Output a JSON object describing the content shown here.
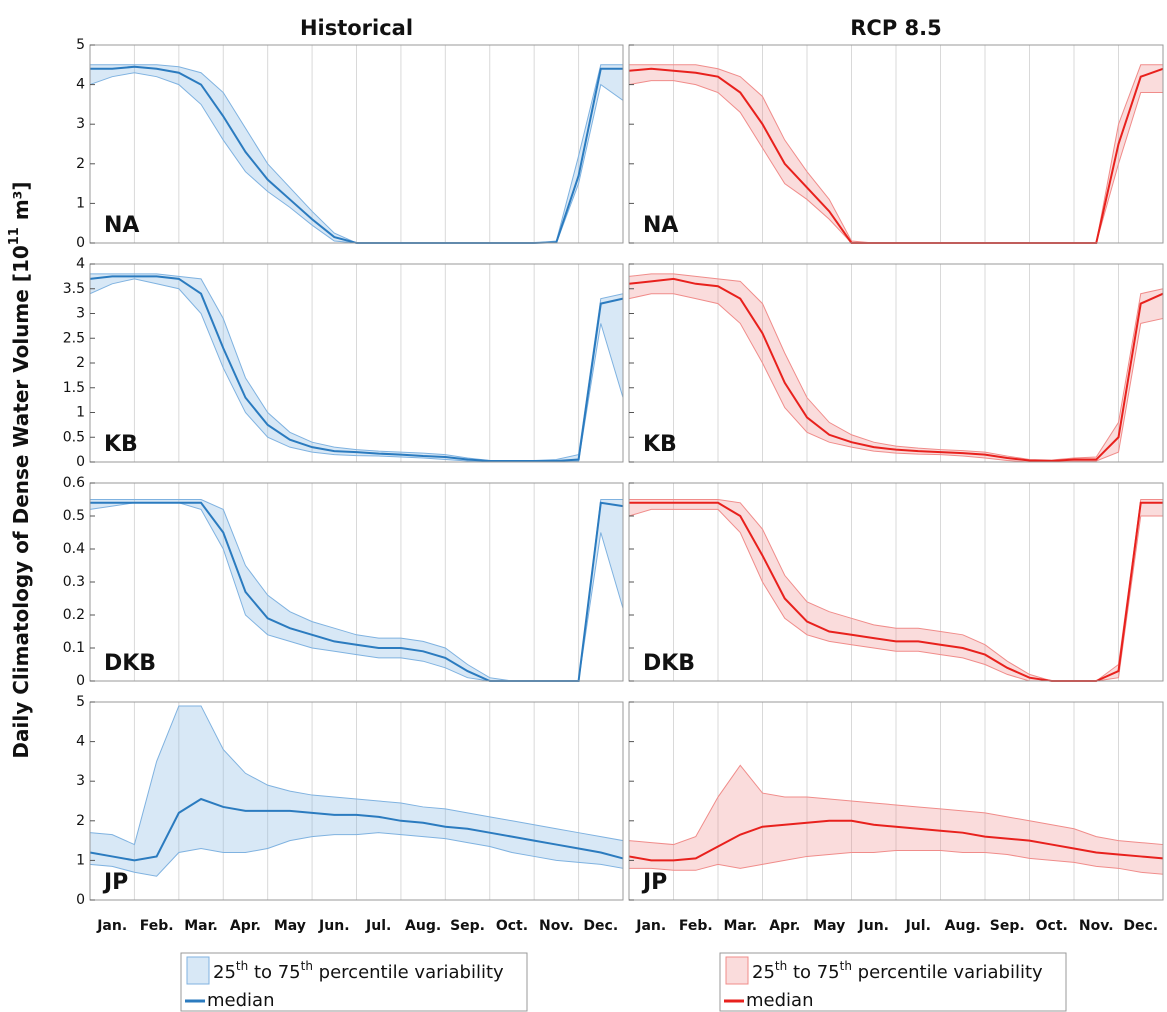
{
  "ylabel": "Daily Climatology of Dense Water Volume [10",
  "ylabel_sup": "11",
  "ylabel_end": " m³]",
  "chart_data": [
    {
      "type": "line",
      "title": "Historical",
      "annotation": "NA",
      "ylim": [
        0,
        5
      ],
      "yticks": [
        0,
        1,
        2,
        3,
        4,
        5
      ],
      "ytick_labels": true,
      "grid": "x",
      "series": [
        {
          "kind": "band",
          "color": "#7fb2e0",
          "low": [
            4.0,
            4.2,
            4.3,
            4.2,
            4.0,
            3.5,
            2.6,
            1.8,
            1.3,
            0.9,
            0.45,
            0.05,
            0,
            0,
            0,
            0,
            0,
            0,
            0,
            0,
            0,
            0,
            1.5,
            4.0,
            3.6
          ],
          "high": [
            4.5,
            4.5,
            4.5,
            4.5,
            4.45,
            4.3,
            3.8,
            2.9,
            2.0,
            1.4,
            0.8,
            0.25,
            0,
            0,
            0,
            0,
            0,
            0,
            0,
            0,
            0,
            0.05,
            2.2,
            4.5,
            4.5
          ]
        },
        {
          "kind": "line",
          "color": "#2b7bbf",
          "values": [
            4.4,
            4.4,
            4.45,
            4.4,
            4.3,
            4.0,
            3.2,
            2.3,
            1.6,
            1.1,
            0.6,
            0.15,
            0,
            0,
            0,
            0,
            0,
            0,
            0,
            0,
            0,
            0.02,
            1.7,
            4.4,
            4.4
          ]
        }
      ]
    },
    {
      "type": "line",
      "annotation": "KB",
      "ylim": [
        0,
        4
      ],
      "yticks": [
        0,
        0.5,
        1,
        1.5,
        2,
        2.5,
        3,
        3.5,
        4
      ],
      "ytick_labels": true,
      "grid": "x",
      "series": [
        {
          "kind": "band",
          "color": "#7fb2e0",
          "low": [
            3.4,
            3.6,
            3.7,
            3.6,
            3.5,
            3.0,
            1.9,
            1.0,
            0.5,
            0.3,
            0.2,
            0.15,
            0.13,
            0.12,
            0.1,
            0.08,
            0.05,
            0.02,
            0,
            0,
            0,
            0,
            0.02,
            2.8,
            1.3
          ],
          "high": [
            3.8,
            3.8,
            3.8,
            3.8,
            3.75,
            3.7,
            2.9,
            1.7,
            1.0,
            0.6,
            0.4,
            0.3,
            0.25,
            0.22,
            0.2,
            0.18,
            0.15,
            0.08,
            0.03,
            0.03,
            0.03,
            0.05,
            0.15,
            3.3,
            3.4
          ]
        },
        {
          "kind": "line",
          "color": "#2b7bbf",
          "values": [
            3.7,
            3.75,
            3.75,
            3.75,
            3.7,
            3.4,
            2.3,
            1.3,
            0.75,
            0.45,
            0.3,
            0.22,
            0.2,
            0.17,
            0.15,
            0.12,
            0.1,
            0.05,
            0.02,
            0.02,
            0.02,
            0.02,
            0.05,
            3.2,
            3.3
          ]
        }
      ]
    },
    {
      "type": "line",
      "annotation": "DKB",
      "ylim": [
        0,
        0.6
      ],
      "yticks": [
        0,
        0.1,
        0.2,
        0.3,
        0.4,
        0.5,
        0.6
      ],
      "ytick_labels": true,
      "grid": "x",
      "series": [
        {
          "kind": "band",
          "color": "#7fb2e0",
          "low": [
            0.52,
            0.53,
            0.54,
            0.54,
            0.54,
            0.52,
            0.4,
            0.2,
            0.14,
            0.12,
            0.1,
            0.09,
            0.08,
            0.07,
            0.07,
            0.06,
            0.04,
            0.01,
            0,
            0,
            0,
            0,
            0,
            0.45,
            0.22
          ],
          "high": [
            0.55,
            0.55,
            0.55,
            0.55,
            0.55,
            0.55,
            0.52,
            0.35,
            0.26,
            0.21,
            0.18,
            0.16,
            0.14,
            0.13,
            0.13,
            0.12,
            0.1,
            0.05,
            0.01,
            0,
            0,
            0,
            0,
            0.55,
            0.55
          ]
        },
        {
          "kind": "line",
          "color": "#2b7bbf",
          "values": [
            0.54,
            0.54,
            0.54,
            0.54,
            0.54,
            0.54,
            0.45,
            0.27,
            0.19,
            0.16,
            0.14,
            0.12,
            0.11,
            0.1,
            0.1,
            0.09,
            0.07,
            0.03,
            0,
            0,
            0,
            0,
            0,
            0.54,
            0.53
          ]
        }
      ]
    },
    {
      "type": "line",
      "annotation": "JP",
      "ylim": [
        0,
        5
      ],
      "yticks": [
        0,
        1,
        2,
        3,
        4,
        5
      ],
      "ytick_labels": true,
      "grid": "x",
      "legend": "below",
      "categories": [
        null,
        "Jan.",
        null,
        "Feb.",
        null,
        "Mar.",
        null,
        "Apr.",
        null,
        "May",
        null,
        "Jun.",
        null,
        "Jul.",
        null,
        "Aug.",
        null,
        "Sep.",
        null,
        "Oct.",
        null,
        "Nov.",
        null,
        "Dec.",
        null
      ],
      "series": [
        {
          "kind": "band",
          "name": "25th to 75th percentile variability",
          "color": "#7fb2e0",
          "low": [
            0.9,
            0.85,
            0.7,
            0.6,
            1.2,
            1.3,
            1.2,
            1.2,
            1.3,
            1.5,
            1.6,
            1.65,
            1.65,
            1.7,
            1.65,
            1.6,
            1.55,
            1.45,
            1.35,
            1.2,
            1.1,
            1.0,
            0.95,
            0.9,
            0.8
          ],
          "high": [
            1.7,
            1.65,
            1.4,
            3.5,
            4.9,
            4.9,
            3.8,
            3.2,
            2.9,
            2.75,
            2.65,
            2.6,
            2.55,
            2.5,
            2.45,
            2.35,
            2.3,
            2.2,
            2.1,
            2.0,
            1.9,
            1.8,
            1.7,
            1.6,
            1.5
          ]
        },
        {
          "kind": "line",
          "name": "median",
          "color": "#2b7bbf",
          "values": [
            1.2,
            1.1,
            1.0,
            1.1,
            2.2,
            2.55,
            2.35,
            2.25,
            2.25,
            2.25,
            2.2,
            2.15,
            2.15,
            2.1,
            2.0,
            1.95,
            1.85,
            1.8,
            1.7,
            1.6,
            1.5,
            1.4,
            1.3,
            1.2,
            1.05
          ]
        }
      ]
    },
    {
      "type": "line",
      "title": "RCP 8.5",
      "annotation": "NA",
      "ylim": [
        0,
        5
      ],
      "yticks": [
        0,
        1,
        2,
        3,
        4,
        5
      ],
      "ytick_labels": false,
      "grid": "x",
      "series": [
        {
          "kind": "band",
          "color": "#f08c8a",
          "low": [
            4.0,
            4.1,
            4.1,
            4.0,
            3.8,
            3.3,
            2.4,
            1.5,
            1.1,
            0.6,
            0,
            0,
            0,
            0,
            0,
            0,
            0,
            0,
            0,
            0,
            0,
            0,
            2.0,
            3.8,
            3.8
          ],
          "high": [
            4.5,
            4.5,
            4.5,
            4.5,
            4.4,
            4.2,
            3.7,
            2.6,
            1.8,
            1.1,
            0.05,
            0,
            0,
            0,
            0,
            0,
            0,
            0,
            0,
            0,
            0,
            0,
            3.0,
            4.5,
            4.5
          ]
        },
        {
          "kind": "line",
          "color": "#e8211d",
          "values": [
            4.35,
            4.4,
            4.35,
            4.3,
            4.2,
            3.8,
            3.0,
            2.0,
            1.4,
            0.8,
            0,
            0,
            0,
            0,
            0,
            0,
            0,
            0,
            0,
            0,
            0,
            0,
            2.5,
            4.2,
            4.4
          ]
        }
      ]
    },
    {
      "type": "line",
      "annotation": "KB",
      "ylim": [
        0,
        4
      ],
      "yticks": [
        0,
        0.5,
        1,
        1.5,
        2,
        2.5,
        3,
        3.5,
        4
      ],
      "ytick_labels": false,
      "grid": "x",
      "series": [
        {
          "kind": "band",
          "color": "#f08c8a",
          "low": [
            3.3,
            3.4,
            3.4,
            3.3,
            3.2,
            2.8,
            2.0,
            1.1,
            0.6,
            0.4,
            0.3,
            0.22,
            0.18,
            0.16,
            0.15,
            0.12,
            0.08,
            0.03,
            0,
            0,
            0.02,
            0.02,
            0.2,
            2.8,
            2.9
          ],
          "high": [
            3.75,
            3.8,
            3.8,
            3.75,
            3.7,
            3.65,
            3.2,
            2.2,
            1.3,
            0.8,
            0.55,
            0.4,
            0.32,
            0.28,
            0.25,
            0.23,
            0.2,
            0.12,
            0.05,
            0.04,
            0.08,
            0.1,
            0.8,
            3.4,
            3.5
          ]
        },
        {
          "kind": "line",
          "color": "#e8211d",
          "values": [
            3.6,
            3.65,
            3.7,
            3.6,
            3.55,
            3.3,
            2.6,
            1.6,
            0.9,
            0.55,
            0.4,
            0.3,
            0.25,
            0.22,
            0.2,
            0.18,
            0.15,
            0.08,
            0.03,
            0.02,
            0.05,
            0.05,
            0.5,
            3.2,
            3.4
          ]
        }
      ]
    },
    {
      "type": "line",
      "annotation": "DKB",
      "ylim": [
        0,
        0.6
      ],
      "yticks": [
        0,
        0.1,
        0.2,
        0.3,
        0.4,
        0.5,
        0.6
      ],
      "ytick_labels": false,
      "grid": "x",
      "series": [
        {
          "kind": "band",
          "color": "#f08c8a",
          "low": [
            0.5,
            0.52,
            0.52,
            0.52,
            0.52,
            0.45,
            0.3,
            0.19,
            0.14,
            0.12,
            0.11,
            0.1,
            0.09,
            0.09,
            0.08,
            0.07,
            0.05,
            0.02,
            0,
            0,
            0,
            0,
            0.01,
            0.5,
            0.5
          ],
          "high": [
            0.55,
            0.55,
            0.55,
            0.55,
            0.55,
            0.54,
            0.46,
            0.32,
            0.24,
            0.21,
            0.19,
            0.17,
            0.16,
            0.16,
            0.15,
            0.14,
            0.11,
            0.06,
            0.02,
            0,
            0,
            0,
            0.05,
            0.55,
            0.55
          ]
        },
        {
          "kind": "line",
          "color": "#e8211d",
          "values": [
            0.54,
            0.54,
            0.54,
            0.54,
            0.54,
            0.5,
            0.38,
            0.25,
            0.18,
            0.15,
            0.14,
            0.13,
            0.12,
            0.12,
            0.11,
            0.1,
            0.08,
            0.04,
            0.01,
            0,
            0,
            0,
            0.03,
            0.54,
            0.54
          ]
        }
      ]
    },
    {
      "type": "line",
      "annotation": "JP",
      "ylim": [
        0,
        5
      ],
      "yticks": [
        0,
        1,
        2,
        3,
        4,
        5
      ],
      "ytick_labels": false,
      "grid": "x",
      "legend": "below",
      "categories": [
        null,
        "Jan.",
        null,
        "Feb.",
        null,
        "Mar.",
        null,
        "Apr.",
        null,
        "May",
        null,
        "Jun.",
        null,
        "Jul.",
        null,
        "Aug.",
        null,
        "Sep.",
        null,
        "Oct.",
        null,
        "Nov.",
        null,
        "Dec.",
        null
      ],
      "series": [
        {
          "kind": "band",
          "name": "25th to 75th percentile variability",
          "color": "#f08c8a",
          "low": [
            0.8,
            0.8,
            0.75,
            0.75,
            0.9,
            0.8,
            0.9,
            1.0,
            1.1,
            1.15,
            1.2,
            1.2,
            1.25,
            1.25,
            1.25,
            1.2,
            1.2,
            1.15,
            1.05,
            1.0,
            0.95,
            0.85,
            0.8,
            0.7,
            0.65
          ],
          "high": [
            1.5,
            1.45,
            1.4,
            1.6,
            2.6,
            3.4,
            2.7,
            2.6,
            2.6,
            2.55,
            2.5,
            2.45,
            2.4,
            2.35,
            2.3,
            2.25,
            2.2,
            2.1,
            2.0,
            1.9,
            1.8,
            1.6,
            1.5,
            1.45,
            1.4
          ]
        },
        {
          "kind": "line",
          "name": "median",
          "color": "#e8211d",
          "values": [
            1.1,
            1.0,
            1.0,
            1.05,
            1.35,
            1.65,
            1.85,
            1.9,
            1.95,
            2.0,
            2.0,
            1.9,
            1.85,
            1.8,
            1.75,
            1.7,
            1.6,
            1.55,
            1.5,
            1.4,
            1.3,
            1.2,
            1.15,
            1.1,
            1.05
          ]
        }
      ]
    }
  ]
}
